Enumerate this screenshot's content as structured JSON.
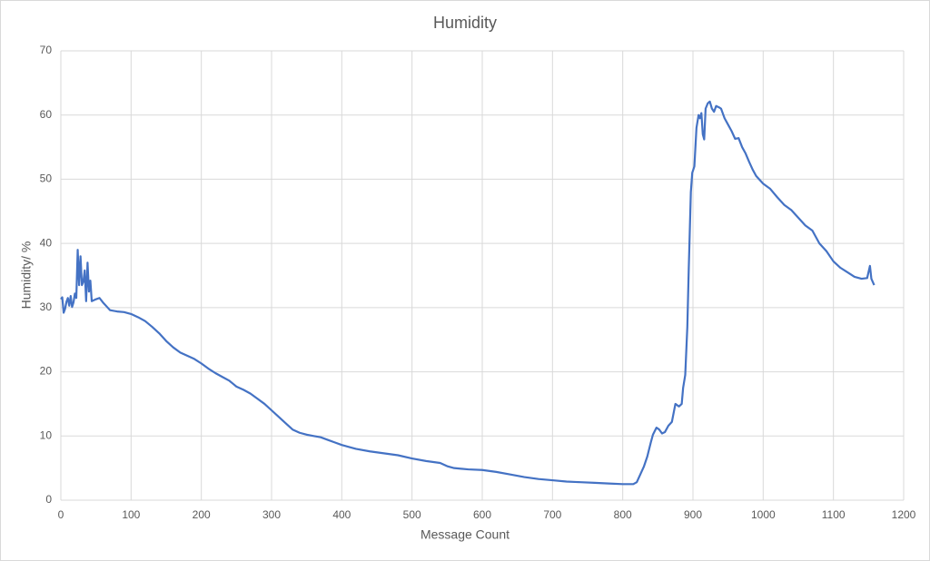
{
  "chart_data": {
    "type": "line",
    "title": "Humidity",
    "x_label": "Message Count",
    "y_label": "Humidity/ %",
    "x": [
      0,
      2,
      4,
      6,
      8,
      10,
      12,
      14,
      16,
      18,
      20,
      22,
      24,
      26,
      28,
      30,
      32,
      34,
      36,
      38,
      40,
      42,
      44,
      50,
      55,
      60,
      65,
      70,
      80,
      90,
      100,
      110,
      120,
      130,
      140,
      150,
      160,
      170,
      180,
      190,
      200,
      210,
      220,
      230,
      240,
      250,
      260,
      270,
      280,
      290,
      300,
      310,
      320,
      330,
      340,
      350,
      360,
      370,
      380,
      390,
      400,
      420,
      440,
      460,
      480,
      500,
      520,
      540,
      550,
      560,
      580,
      600,
      620,
      640,
      660,
      680,
      700,
      720,
      740,
      760,
      780,
      800,
      815,
      820,
      825,
      830,
      835,
      840,
      843,
      848,
      852,
      856,
      860,
      865,
      870,
      875,
      880,
      884,
      886,
      889,
      892,
      894,
      897,
      899,
      902,
      905,
      908,
      910,
      912,
      914,
      916,
      918,
      921,
      924,
      927,
      930,
      933,
      937,
      940,
      945,
      950,
      955,
      960,
      965,
      970,
      975,
      980,
      985,
      990,
      1000,
      1010,
      1020,
      1030,
      1040,
      1050,
      1060,
      1070,
      1080,
      1090,
      1100,
      1110,
      1120,
      1130,
      1140,
      1148,
      1152,
      1154,
      1158
    ],
    "values": [
      31.3,
      31.6,
      29.2,
      29.8,
      30.9,
      31.5,
      30.3,
      31.8,
      30.1,
      30.8,
      32.2,
      31.5,
      39.0,
      33.5,
      38.0,
      33.5,
      34.0,
      35.8,
      31.0,
      37.0,
      32.5,
      34.2,
      31.0,
      31.3,
      31.5,
      30.8,
      30.2,
      29.6,
      29.4,
      29.3,
      29.0,
      28.5,
      27.9,
      27.0,
      26.0,
      24.8,
      23.8,
      23.0,
      22.5,
      22.0,
      21.3,
      20.5,
      19.8,
      19.2,
      18.6,
      17.7,
      17.2,
      16.6,
      15.8,
      15.0,
      14.0,
      13.0,
      12.0,
      11.0,
      10.5,
      10.2,
      10.0,
      9.8,
      9.4,
      9.0,
      8.6,
      8.0,
      7.6,
      7.3,
      7.0,
      6.5,
      6.1,
      5.8,
      5.3,
      5.0,
      4.8,
      4.7,
      4.4,
      4.0,
      3.6,
      3.3,
      3.1,
      2.9,
      2.8,
      2.7,
      2.6,
      2.5,
      2.5,
      2.8,
      4.0,
      5.2,
      6.8,
      9.0,
      10.2,
      11.3,
      11.0,
      10.4,
      10.6,
      11.6,
      12.2,
      15.0,
      14.6,
      15.0,
      17.5,
      19.5,
      27.0,
      36.0,
      48.0,
      51.0,
      52.0,
      58.0,
      60.0,
      59.5,
      60.3,
      57.0,
      56.2,
      61.0,
      61.8,
      62.1,
      61.0,
      60.5,
      61.4,
      61.2,
      61.0,
      59.5,
      58.5,
      57.5,
      56.3,
      56.4,
      55.0,
      54.0,
      52.7,
      51.5,
      50.5,
      49.3,
      48.5,
      47.2,
      46.0,
      45.2,
      44.0,
      42.8,
      42.0,
      40.0,
      38.8,
      37.2,
      36.2,
      35.5,
      34.8,
      34.5,
      34.6,
      36.5,
      34.5,
      33.5
    ],
    "color": "#4472c4",
    "xlim": [
      0,
      1200
    ],
    "ylim": [
      0,
      70
    ],
    "xticks": [
      0,
      100,
      200,
      300,
      400,
      500,
      600,
      700,
      800,
      900,
      1000,
      1100,
      1200
    ],
    "yticks": [
      0,
      10,
      20,
      30,
      40,
      50,
      60,
      70
    ],
    "grid": true
  }
}
